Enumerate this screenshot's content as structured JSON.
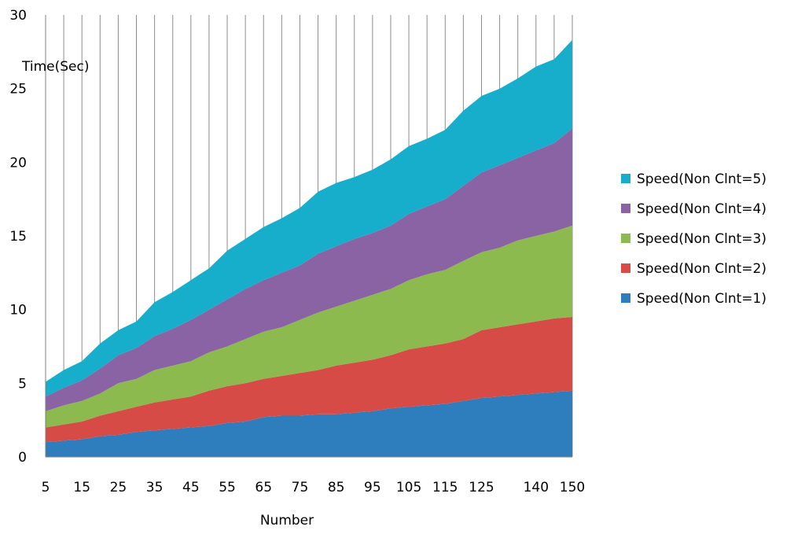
{
  "chart_data": {
    "type": "area",
    "stacked": true,
    "title": "",
    "xlabel": "Number",
    "ylabel": "Time(Sec)",
    "ylim": [
      0,
      30
    ],
    "yticks": [
      0,
      5,
      10,
      15,
      20,
      25,
      30
    ],
    "x": [
      5,
      10,
      15,
      20,
      25,
      30,
      35,
      40,
      45,
      50,
      55,
      60,
      65,
      70,
      75,
      80,
      85,
      90,
      95,
      100,
      105,
      110,
      115,
      120,
      125,
      130,
      135,
      140,
      145,
      150
    ],
    "xtick_labels": [
      "5",
      "15",
      "25",
      "35",
      "45",
      "55",
      "65",
      "75",
      "85",
      "95",
      "105",
      "115",
      "125",
      "140",
      "150"
    ],
    "grid": "vertical",
    "legend_position": "right",
    "series": [
      {
        "name": "Speed(Non Clnt=1)",
        "color": "#2e7ebd",
        "cumulative": [
          1.0,
          1.1,
          1.2,
          1.4,
          1.5,
          1.7,
          1.8,
          1.9,
          2.0,
          2.1,
          2.3,
          2.4,
          2.7,
          2.8,
          2.8,
          2.9,
          2.9,
          3.0,
          3.1,
          3.3,
          3.4,
          3.5,
          3.6,
          3.8,
          4.0,
          4.1,
          4.2,
          4.3,
          4.4,
          4.5
        ]
      },
      {
        "name": "Speed(Non Clnt=2)",
        "color": "#d74b47",
        "cumulative": [
          2.0,
          2.2,
          2.4,
          2.8,
          3.1,
          3.4,
          3.7,
          3.9,
          4.1,
          4.5,
          4.8,
          5.0,
          5.3,
          5.5,
          5.7,
          5.9,
          6.2,
          6.4,
          6.6,
          6.9,
          7.3,
          7.5,
          7.7,
          8.0,
          8.6,
          8.8,
          9.0,
          9.2,
          9.4,
          9.5
        ]
      },
      {
        "name": "Speed(Non Clnt=3)",
        "color": "#8cba4e",
        "cumulative": [
          3.1,
          3.5,
          3.8,
          4.3,
          5.0,
          5.3,
          5.9,
          6.2,
          6.5,
          7.1,
          7.5,
          8.0,
          8.5,
          8.8,
          9.3,
          9.8,
          10.2,
          10.6,
          11.0,
          11.4,
          12.0,
          12.4,
          12.7,
          13.3,
          13.9,
          14.2,
          14.7,
          15.0,
          15.3,
          15.7
        ]
      },
      {
        "name": "Speed(Non Clnt=4)",
        "color": "#8a63a4",
        "cumulative": [
          4.1,
          4.7,
          5.2,
          6.0,
          6.9,
          7.4,
          8.2,
          8.7,
          9.3,
          10.0,
          10.7,
          11.4,
          12.0,
          12.5,
          13.0,
          13.8,
          14.3,
          14.8,
          15.2,
          15.7,
          16.5,
          17.0,
          17.5,
          18.4,
          19.3,
          19.8,
          20.3,
          20.8,
          21.3,
          22.3
        ]
      },
      {
        "name": "Speed(Non Clnt=5)",
        "color": "#16aecb",
        "cumulative": [
          5.1,
          5.9,
          6.5,
          7.7,
          8.6,
          9.2,
          10.5,
          11.2,
          12.0,
          12.8,
          14.0,
          14.8,
          15.6,
          16.2,
          16.9,
          18.0,
          18.6,
          19.0,
          19.5,
          20.2,
          21.1,
          21.6,
          22.2,
          23.5,
          24.5,
          25.0,
          25.7,
          26.5,
          27.0,
          28.3
        ]
      }
    ]
  }
}
